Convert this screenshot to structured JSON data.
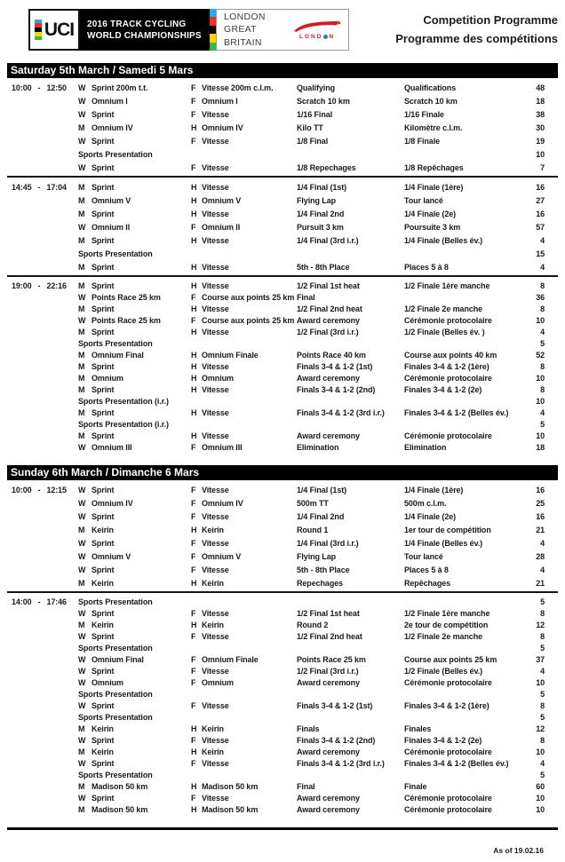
{
  "header": {
    "uci_logo_text": "UCI",
    "uci_mark_icon": "uci-rainbow-stripes-icon",
    "uci_stripe_colors": [
      "#29abe2",
      "#ee2e24",
      "#000000",
      "#ffd400",
      "#39b54a"
    ],
    "champ_line1": "2016 TRACK CYCLING",
    "champ_line2": "WORLD CHAMPIONSHIPS",
    "host_line1": "LONDON",
    "host_line2": "GREAT BRITAIN",
    "london_logo": {
      "velodrome_icon": "london-velodrome-icon",
      "word_left": "LOND",
      "o_dot_icon": "london-o-dot-icon",
      "word_right": "N",
      "red": "#d21f26"
    },
    "title_line1": "Competition Programme",
    "title_line2": "Programme des compétitions"
  },
  "days": [
    {
      "title": "Saturday 5th March / Samedi 5 Mars",
      "sessions": [
        {
          "start": "10:00",
          "end": "12:50",
          "rows": [
            {
              "g_en": "W",
              "ev_en": "Sprint 200m t.t.",
              "g_fr": "F",
              "ev_fr": "Vitesse 200m c.l.m.",
              "ph_en": "Qualifying",
              "ph_fr": "Qualifications",
              "min": "48"
            },
            {
              "g_en": "W",
              "ev_en": "Omnium I",
              "g_fr": "F",
              "ev_fr": "Omnium I",
              "ph_en": "Scratch 10 km",
              "ph_fr": "Scratch 10 km",
              "min": "18"
            },
            {
              "g_en": "W",
              "ev_en": "Sprint",
              "g_fr": "F",
              "ev_fr": "Vitesse",
              "ph_en": "1/16 Final",
              "ph_fr": "1/16 Finale",
              "min": "38"
            },
            {
              "g_en": "M",
              "ev_en": "Omnium IV",
              "g_fr": "H",
              "ev_fr": "Omnium IV",
              "ph_en": "Kilo TT",
              "ph_fr": "Kilomètre c.l.m.",
              "min": "30"
            },
            {
              "g_en": "W",
              "ev_en": "Sprint",
              "g_fr": "F",
              "ev_fr": "Vitesse",
              "ph_en": "1/8 Final",
              "ph_fr": "1/8 Finale",
              "min": "19"
            },
            {
              "span": "Sports Presentation",
              "min": "10"
            },
            {
              "g_en": "W",
              "ev_en": "Sprint",
              "g_fr": "F",
              "ev_fr": "Vitesse",
              "ph_en": "1/8 Repechages",
              "ph_fr": "1/8 Repêchages",
              "min": "7"
            }
          ]
        },
        {
          "start": "14:45",
          "end": "17:04",
          "rows": [
            {
              "g_en": "M",
              "ev_en": "Sprint",
              "g_fr": "H",
              "ev_fr": "Vitesse",
              "ph_en": "1/4 Final (1st)",
              "ph_fr": "1/4 Finale (1ère)",
              "min": "16"
            },
            {
              "g_en": "M",
              "ev_en": "Omnium V",
              "g_fr": "H",
              "ev_fr": "Omnium V",
              "ph_en": "Flying Lap",
              "ph_fr": "Tour lancé",
              "min": "27"
            },
            {
              "g_en": "M",
              "ev_en": "Sprint",
              "g_fr": "H",
              "ev_fr": "Vitesse",
              "ph_en": "1/4 Final 2nd",
              "ph_fr": "1/4 Finale (2e)",
              "min": "16"
            },
            {
              "g_en": "W",
              "ev_en": "Omnium II",
              "g_fr": "F",
              "ev_fr": "Omnium II",
              "ph_en": "Pursuit 3 km",
              "ph_fr": "Poursuite 3 km",
              "min": "57"
            },
            {
              "g_en": "M",
              "ev_en": "Sprint",
              "g_fr": "H",
              "ev_fr": "Vitesse",
              "ph_en": "1/4 Final (3rd i.r.)",
              "ph_fr": "1/4 Finale (Belles év.)",
              "min": "4"
            },
            {
              "span": "Sports Presentation",
              "min": "15"
            },
            {
              "g_en": "M",
              "ev_en": "Sprint",
              "g_fr": "H",
              "ev_fr": "Vitesse",
              "ph_en": "5th - 8th Place",
              "ph_fr": "Places 5 à 8",
              "min": "4"
            }
          ]
        },
        {
          "start": "19:00",
          "end": "22:16",
          "rows": [
            {
              "g_en": "M",
              "ev_en": "Sprint",
              "g_fr": "H",
              "ev_fr": "Vitesse",
              "ph_en": "1/2 Final 1st heat",
              "ph_fr": "1/2 Finale 1ère manche",
              "min": "8"
            },
            {
              "g_en": "W",
              "ev_en": "Points Race 25 km",
              "g_fr": "F",
              "ev_fr": "Course aux points 25 km",
              "ph_en": "Final",
              "ph_fr": "",
              "min": "36"
            },
            {
              "g_en": "M",
              "ev_en": "Sprint",
              "g_fr": "H",
              "ev_fr": "Vitesse",
              "ph_en": "1/2 Final 2nd heat",
              "ph_fr": "1/2 Finale 2e manche",
              "min": "8"
            },
            {
              "g_en": "W",
              "ev_en": "Points Race 25 km",
              "g_fr": "F",
              "ev_fr": "Course aux points 25 km",
              "ph_en": "Award ceremony",
              "ph_fr": "Cérémonie protocolaire",
              "min": "10"
            },
            {
              "g_en": "M",
              "ev_en": "Sprint",
              "g_fr": "H",
              "ev_fr": "Vitesse",
              "ph_en": "1/2 Final (3rd i.r.)",
              "ph_fr": "1/2 Finale (Belles év. )",
              "min": "4"
            },
            {
              "span": "Sports Presentation",
              "min": "5"
            },
            {
              "g_en": "M",
              "ev_en": "Omnium Final",
              "g_fr": "H",
              "ev_fr": "Omnium Finale",
              "ph_en": "Points Race 40 km",
              "ph_fr": "Course aux points 40 km",
              "min": "52"
            },
            {
              "g_en": "M",
              "ev_en": "Sprint",
              "g_fr": "H",
              "ev_fr": "Vitesse",
              "ph_en": "Finals 3-4 & 1-2 (1st)",
              "ph_fr": "Finales 3-4 & 1-2 (1ère)",
              "min": "8"
            },
            {
              "g_en": "M",
              "ev_en": "Omnium",
              "g_fr": "H",
              "ev_fr": "Omnium",
              "ph_en": "Award ceremony",
              "ph_fr": "Cérémonie protocolaire",
              "min": "10"
            },
            {
              "g_en": "M",
              "ev_en": "Sprint",
              "g_fr": "H",
              "ev_fr": "Vitesse",
              "ph_en": "Finals 3-4 & 1-2 (2nd)",
              "ph_fr": "Finales 3-4 & 1-2 (2e)",
              "min": "8"
            },
            {
              "span": "Sports Presentation (i.r.)",
              "min": "10"
            },
            {
              "g_en": "M",
              "ev_en": "Sprint",
              "g_fr": "H",
              "ev_fr": "Vitesse",
              "ph_en": "Finals 3-4 & 1-2 (3rd i.r.)",
              "ph_fr": "Finales 3-4 & 1-2 (Belles év.)",
              "min": "4"
            },
            {
              "span": "Sports Presentation (i.r.)",
              "min": "5"
            },
            {
              "g_en": "M",
              "ev_en": "Sprint",
              "g_fr": "H",
              "ev_fr": "Vitesse",
              "ph_en": "Award ceremony",
              "ph_fr": "Cérémonie protocolaire",
              "min": "10"
            },
            {
              "g_en": "W",
              "ev_en": "Omnium III",
              "g_fr": "F",
              "ev_fr": "Omnium III",
              "ph_en": "Elimination",
              "ph_fr": "Elimination",
              "min": "18"
            }
          ]
        }
      ]
    },
    {
      "title": "Sunday 6th March / Dimanche 6 Mars",
      "sessions": [
        {
          "start": "10:00",
          "end": "12:15",
          "rows": [
            {
              "g_en": "W",
              "ev_en": "Sprint",
              "g_fr": "F",
              "ev_fr": "Vitesse",
              "ph_en": "1/4 Final (1st)",
              "ph_fr": "1/4 Finale (1ère)",
              "min": "16"
            },
            {
              "g_en": "W",
              "ev_en": "Omnium IV",
              "g_fr": "F",
              "ev_fr": "Omnium IV",
              "ph_en": "500m TT",
              "ph_fr": "500m c.l.m.",
              "min": "25"
            },
            {
              "g_en": "W",
              "ev_en": "Sprint",
              "g_fr": "F",
              "ev_fr": "Vitesse",
              "ph_en": "1/4 Final 2nd",
              "ph_fr": "1/4 Finale (2e)",
              "min": "16"
            },
            {
              "g_en": "M",
              "ev_en": "Keirin",
              "g_fr": "H",
              "ev_fr": "Keirin",
              "ph_en": "Round 1",
              "ph_fr": "1er tour de compétition",
              "min": "21"
            },
            {
              "g_en": "W",
              "ev_en": "Sprint",
              "g_fr": "F",
              "ev_fr": "Vitesse",
              "ph_en": "1/4 Final (3rd i.r.)",
              "ph_fr": "1/4 Finale (Belles év.)",
              "min": "4"
            },
            {
              "g_en": "W",
              "ev_en": "Omnium V",
              "g_fr": "F",
              "ev_fr": "Omnium V",
              "ph_en": "Flying Lap",
              "ph_fr": "Tour lancé",
              "min": "28"
            },
            {
              "g_en": "W",
              "ev_en": "Sprint",
              "g_fr": "F",
              "ev_fr": "Vitesse",
              "ph_en": "5th - 8th Place",
              "ph_fr": "Places 5 à 8",
              "min": "4"
            },
            {
              "g_en": "M",
              "ev_en": "Keirin",
              "g_fr": "H",
              "ev_fr": "Keirin",
              "ph_en": "Repechages",
              "ph_fr": "Repêchages",
              "min": "21"
            }
          ]
        },
        {
          "start": "14:00",
          "end": "17:46",
          "rows": [
            {
              "span": "Sports Presentation",
              "min": "5"
            },
            {
              "g_en": "W",
              "ev_en": "Sprint",
              "g_fr": "F",
              "ev_fr": "Vitesse",
              "ph_en": "1/2 Final 1st heat",
              "ph_fr": "1/2 Finale 1ère manche",
              "min": "8"
            },
            {
              "g_en": "M",
              "ev_en": "Keirin",
              "g_fr": "H",
              "ev_fr": "Keirin",
              "ph_en": "Round 2",
              "ph_fr": "2e tour de compétition",
              "min": "12"
            },
            {
              "g_en": "W",
              "ev_en": "Sprint",
              "g_fr": "F",
              "ev_fr": "Vitesse",
              "ph_en": "1/2 Final 2nd heat",
              "ph_fr": "1/2 Finale 2e manche",
              "min": "8"
            },
            {
              "span": "Sports Presentation",
              "min": "5"
            },
            {
              "g_en": "W",
              "ev_en": "Omnium Final",
              "g_fr": "F",
              "ev_fr": "Omnium Finale",
              "ph_en": "Points Race 25 km",
              "ph_fr": "Course aux points 25 km",
              "min": "37"
            },
            {
              "g_en": "W",
              "ev_en": "Sprint",
              "g_fr": "F",
              "ev_fr": "Vitesse",
              "ph_en": "1/2 Final (3rd i.r.)",
              "ph_fr": "1/2 Finale (Belles év.)",
              "min": "4"
            },
            {
              "g_en": "W",
              "ev_en": "Omnium",
              "g_fr": "F",
              "ev_fr": "Omnium",
              "ph_en": "Award ceremony",
              "ph_fr": "Cérémonie protocolaire",
              "min": "10"
            },
            {
              "span": "Sports Presentation",
              "min": "5"
            },
            {
              "g_en": "W",
              "ev_en": "Sprint",
              "g_fr": "F",
              "ev_fr": "Vitesse",
              "ph_en": "Finals 3-4 & 1-2 (1st)",
              "ph_fr": "Finales 3-4 & 1-2 (1ère)",
              "min": "8"
            },
            {
              "span": "Sports Presentation",
              "min": "5"
            },
            {
              "g_en": "M",
              "ev_en": "Keirin",
              "g_fr": "H",
              "ev_fr": "Keirin",
              "ph_en": "Finals",
              "ph_fr": "Finales",
              "min": "12"
            },
            {
              "g_en": "W",
              "ev_en": "Sprint",
              "g_fr": "F",
              "ev_fr": "Vitesse",
              "ph_en": "Finals 3-4 & 1-2 (2nd)",
              "ph_fr": "Finales 3-4 & 1-2 (2e)",
              "min": "8"
            },
            {
              "g_en": "M",
              "ev_en": "Keirin",
              "g_fr": "H",
              "ev_fr": "Keirin",
              "ph_en": "Award ceremony",
              "ph_fr": "Cérémonie protocolaire",
              "min": "10"
            },
            {
              "g_en": "W",
              "ev_en": "Sprint",
              "g_fr": "F",
              "ev_fr": "Vitesse",
              "ph_en": "Finals 3-4 & 1-2 (3rd i.r.)",
              "ph_fr": "Finales 3-4 & 1-2 (Belles év.)",
              "min": "4"
            },
            {
              "span": "Sports Presentation",
              "min": "5"
            },
            {
              "g_en": "M",
              "ev_en": "Madison 50 km",
              "g_fr": "H",
              "ev_fr": "Madison 50 km",
              "ph_en": "Final",
              "ph_fr": "Finale",
              "min": "60"
            },
            {
              "g_en": "W",
              "ev_en": "Sprint",
              "g_fr": "F",
              "ev_fr": "Vitesse",
              "ph_en": "Award ceremony",
              "ph_fr": "Cérémonie protocolaire",
              "min": "10"
            },
            {
              "g_en": "M",
              "ev_en": "Madison 50 km",
              "g_fr": "H",
              "ev_fr": "Madison 50 km",
              "ph_en": "Award ceremony",
              "ph_fr": "Cérémonie protocolaire",
              "min": "10"
            }
          ]
        }
      ]
    }
  ],
  "footer": {
    "as_of": "As of 19.02.16"
  }
}
